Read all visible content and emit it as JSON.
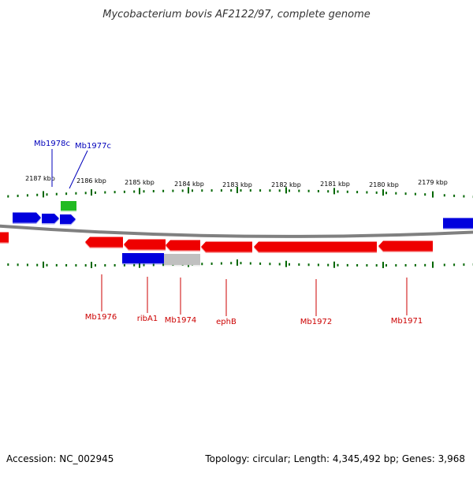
{
  "title": "Mycobacterium bovis AF2122/97, complete genome",
  "footer": {
    "accession": "Accession: NC_002945",
    "summary": "Topology: circular; Length: 4,345,492 bp; Genes: 3,968"
  },
  "colors": {
    "forward_gene": "#0000dd",
    "reverse_gene": "#ee0000",
    "rna_gene": "#22bb22",
    "pseudo_gene": "#c0c0c0",
    "backbone": "#808080",
    "ticks": "#006600",
    "forward_label": "#0000bb",
    "reverse_label": "#cc0000"
  },
  "scale": {
    "tick_labels": [
      "2187 kbp",
      "2186 kbp",
      "2185 kbp",
      "2184 kbp",
      "2183 kbp",
      "2182 kbp",
      "2181 kbp",
      "2180 kbp",
      "2179 kbp"
    ]
  },
  "forward_labels": [
    {
      "id": "fw-mb1978c",
      "text": "Mb1978c"
    },
    {
      "id": "fw-mb1977c",
      "text": "Mb1977c"
    }
  ],
  "reverse_labels": [
    {
      "id": "rv-mb1976",
      "text": "Mb1976"
    },
    {
      "id": "rv-riba1",
      "text": "ribA1"
    },
    {
      "id": "rv-mb1974",
      "text": "Mb1974"
    },
    {
      "id": "rv-ephb",
      "text": "ephB"
    },
    {
      "id": "rv-mb1972",
      "text": "Mb1972"
    },
    {
      "id": "rv-mb1971",
      "text": "Mb1971"
    }
  ]
}
